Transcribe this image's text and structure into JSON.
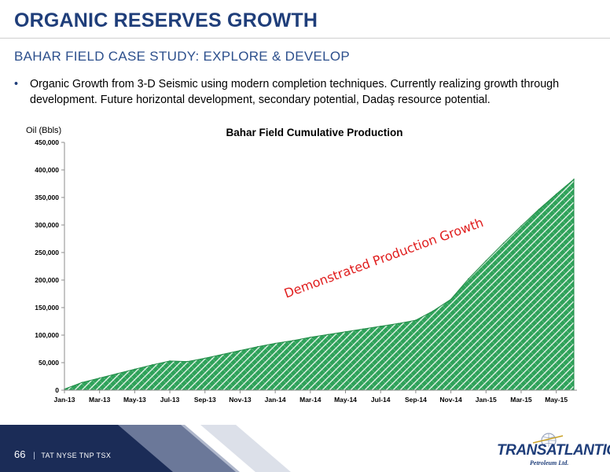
{
  "slide": {
    "title": "ORGANIC RESERVES GROWTH",
    "subtitle": "BAHAR FIELD CASE STUDY: EXPLORE & DEVELOP",
    "bullet_marker": "•",
    "bullet": "Organic Growth from 3-D Seismic using modern completion techniques.  Currently realizing growth through development.  Future horizontal development, secondary potential, Dadaş resource potential."
  },
  "footer": {
    "page_number": "66",
    "separator": "|",
    "tickers": "TAT NYSE  TNP TSX"
  },
  "logo": {
    "name": "TRANSATLANTIC",
    "tagline": "Petroleum Ltd."
  },
  "colors": {
    "title_blue": "#1f3e7a",
    "area_fill": "#2fa25a",
    "area_hatch": "#ffffff",
    "annotation_red": "#e01e1e",
    "footer_navy": "#1b2c57"
  },
  "chart_data": {
    "type": "area",
    "title": "Bahar Field Cumulative Production",
    "ylabel": "Oil (Bbls)",
    "xlabel": "",
    "annotation": "Demonstrated Production Growth",
    "ylim": [
      0,
      450000
    ],
    "yticks": [
      0,
      50000,
      100000,
      150000,
      200000,
      250000,
      300000,
      350000,
      400000,
      450000
    ],
    "ytick_labels": [
      "0",
      "50,000",
      "100,000",
      "150,000",
      "200,000",
      "250,000",
      "300,000",
      "350,000",
      "400,000",
      "450,000"
    ],
    "xtick_labels": [
      "Jan-13",
      "Mar-13",
      "May-13",
      "Jul-13",
      "Sep-13",
      "Nov-13",
      "Jan-14",
      "Mar-14",
      "May-14",
      "Jul-14",
      "Sep-14",
      "Nov-14",
      "Jan-15",
      "Mar-15",
      "May-15"
    ],
    "grid": false,
    "x": [
      "Jan-13",
      "Feb-13",
      "Mar-13",
      "Apr-13",
      "May-13",
      "Jun-13",
      "Jul-13",
      "Aug-13",
      "Sep-13",
      "Oct-13",
      "Nov-13",
      "Dec-13",
      "Jan-14",
      "Feb-14",
      "Mar-14",
      "Apr-14",
      "May-14",
      "Jun-14",
      "Jul-14",
      "Aug-14",
      "Sep-14",
      "Oct-14",
      "Nov-14",
      "Dec-14",
      "Jan-15",
      "Feb-15",
      "Mar-15",
      "Apr-15",
      "May-15",
      "Jun-15"
    ],
    "series": [
      {
        "values": [
          2000,
          14000,
          22000,
          30000,
          38000,
          46000,
          53000,
          52000,
          58000,
          65000,
          72000,
          79000,
          85000,
          90000,
          96000,
          101000,
          106000,
          111000,
          116000,
          121000,
          127000,
          144000,
          165000,
          202000,
          235000,
          267000,
          298000,
          328000,
          356000,
          383000
        ]
      }
    ]
  }
}
